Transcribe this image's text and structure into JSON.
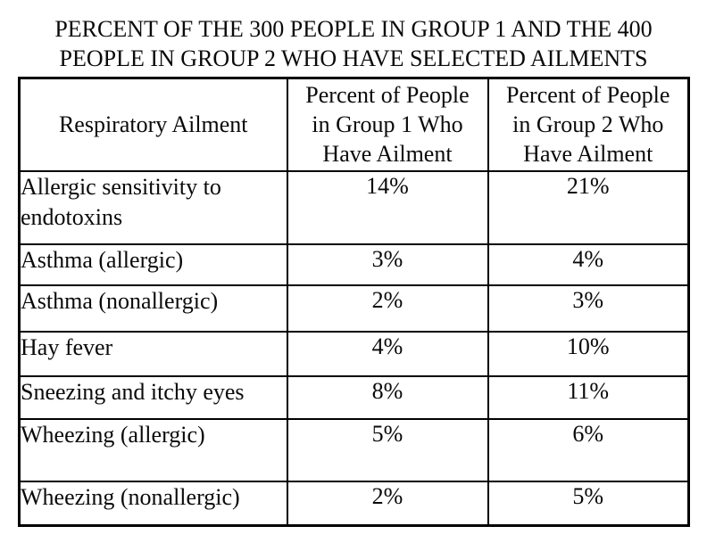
{
  "page": {
    "title_line1": "PERCENT OF THE 300 PEOPLE IN GROUP 1 AND THE 400",
    "title_line2": "PEOPLE IN GROUP 2 WHO HAVE SELECTED AILMENTS"
  },
  "table": {
    "col1_header": "Respiratory Ailment",
    "col2_header_lines": [
      "Percent of People",
      "in Group 1 Who",
      "Have Ailment"
    ],
    "col3_header_lines": [
      "Percent of People",
      "in Group 2 Who",
      "Have Ailment"
    ],
    "rows": [
      {
        "ailment": "Allergic sensitivity to endotoxins",
        "group1": "14%",
        "group2": "21%"
      },
      {
        "ailment": "Asthma (allergic)",
        "group1": "3%",
        "group2": "4%"
      },
      {
        "ailment": "Asthma (nonallergic)",
        "group1": "2%",
        "group2": "3%"
      },
      {
        "ailment": "Hay fever",
        "group1": "4%",
        "group2": "10%"
      },
      {
        "ailment": "Sneezing and itchy eyes",
        "group1": "8%",
        "group2": "11%"
      },
      {
        "ailment": "Wheezing (allergic)",
        "group1": "5%",
        "group2": "6%"
      },
      {
        "ailment": "Wheezing (nonallergic)",
        "group1": "2%",
        "group2": "5%"
      }
    ]
  },
  "colors": {
    "background": "#ffffff",
    "text": "#0a0a0a",
    "border": "#000000"
  }
}
